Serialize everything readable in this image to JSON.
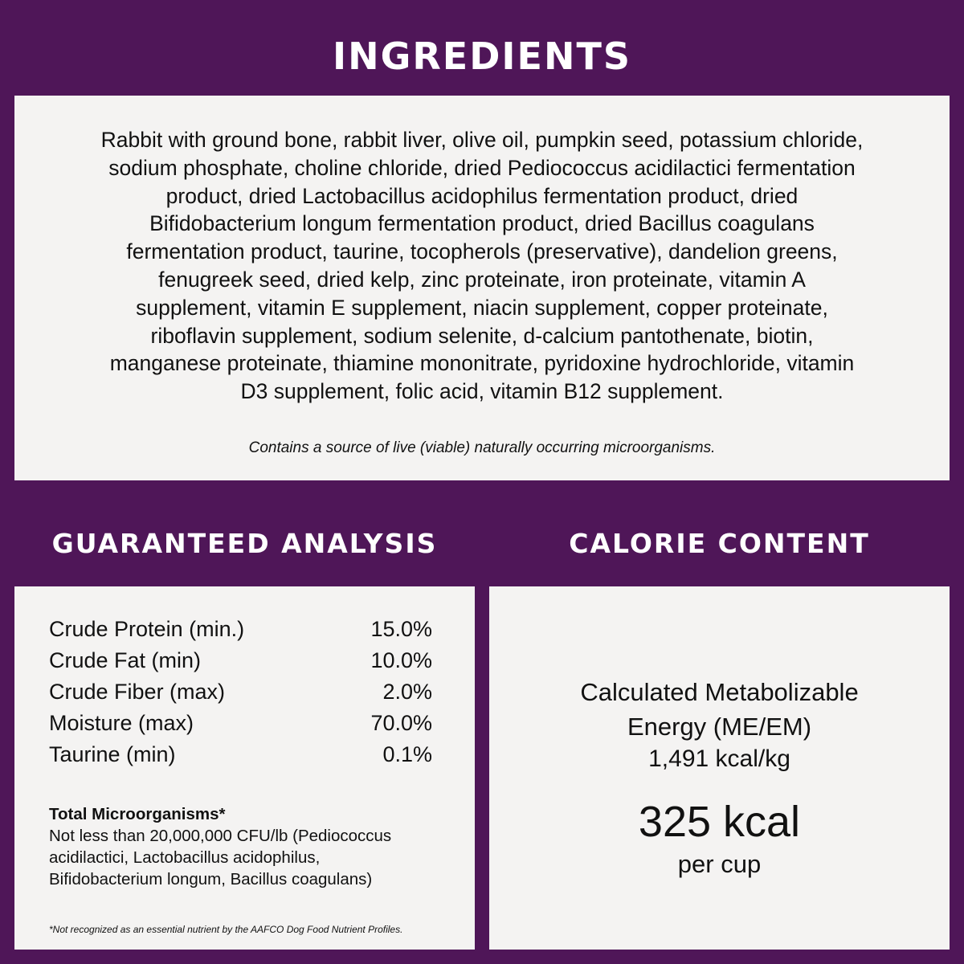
{
  "colors": {
    "background": "#4f1658",
    "panel": "#f4f3f2",
    "text": "#111111"
  },
  "ingredients": {
    "title": "INGREDIENTS",
    "lines": [
      "Rabbit with ground bone, rabbit liver, olive oil, pumpkin seed, potassium chloride,",
      "sodium phosphate, choline chloride, dried Pediococcus acidilactici fermentation",
      "product, dried Lactobacillus acidophilus fermentation product, dried",
      "Bifidobacterium longum fermentation product, dried Bacillus coagulans",
      "fermentation product, taurine, tocopherols (preservative), dandelion greens,",
      "fenugreek seed, dried kelp, zinc proteinate, iron proteinate, vitamin A",
      "supplement, vitamin E supplement, niacin supplement, copper proteinate,",
      "riboflavin supplement, sodium selenite, d-calcium pantothenate, biotin,",
      "manganese proteinate, thiamine mononitrate, pyridoxine hydrochloride, vitamin",
      "D3 supplement, folic acid, vitamin B12 supplement."
    ],
    "note": "Contains a source of live (viable) naturally occurring microorganisms."
  },
  "analysis": {
    "title": "GUARANTEED ANALYSIS",
    "rows": [
      {
        "label": "Crude Protein (min.)",
        "value": "15.0%"
      },
      {
        "label": "Crude Fat (min)",
        "value": "10.0%"
      },
      {
        "label": "Crude Fiber (max)",
        "value": "2.0%"
      },
      {
        "label": "Moisture (max)",
        "value": "70.0%"
      },
      {
        "label": "Taurine (min)",
        "value": "0.1%"
      }
    ],
    "micro_title": "Total Microorganisms*",
    "micro_lines": [
      "Not less than 20,000,000 CFU/lb (Pediococcus",
      "acidilactici, Lactobacillus acidophilus,",
      "Bifidobacterium longum, Bacillus coagulans)"
    ],
    "footnote": "*Not recognized as an essential nutrient by the AAFCO Dog Food Nutrient Profiles."
  },
  "calories": {
    "title": "CALORIE CONTENT",
    "line1": "Calculated Metabolizable",
    "line2": "Energy (ME/EM)",
    "per_kg": "1,491 kcal/kg",
    "per_cup_value": "325 kcal",
    "per_cup_label": "per cup"
  }
}
